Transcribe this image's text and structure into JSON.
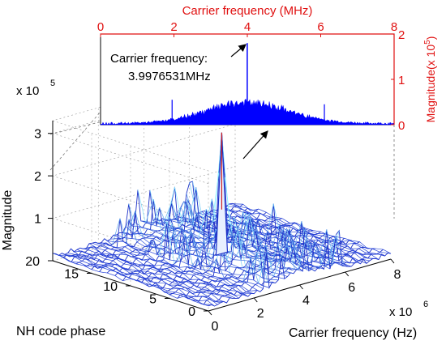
{
  "chart_data": [
    {
      "type": "surface",
      "xlabel": "Carrier frequency (Hz)",
      "ylabel": "NH code phase",
      "zlabel": "Magnitude",
      "x_ticks": [
        "0",
        "2",
        "4",
        "6",
        "8"
      ],
      "x_exponent": "x 10",
      "x_exponent_power": "6",
      "y_ticks": [
        "0",
        "5",
        "10",
        "15",
        "20"
      ],
      "z_ticks": [
        "1",
        "2",
        "3"
      ],
      "z_exponent": "x 10",
      "z_exponent_power": "5",
      "xlim": [
        0,
        8000000
      ],
      "ylim": [
        0,
        20
      ],
      "zlim": [
        0,
        330000
      ],
      "peak": {
        "x": 3997653.1,
        "y": 10,
        "z": 300000
      },
      "color": "#1e32c8"
    },
    {
      "type": "area",
      "title": "Carrier frequency (MHz)",
      "ylabel": "Magnitude(x 10",
      "ylabel_power": "5",
      "ylabel_close": ")",
      "x_ticks": [
        "0",
        "2",
        "4",
        "6",
        "8"
      ],
      "y_ticks": [
        "0",
        "1",
        "2"
      ],
      "xlim": [
        0,
        8
      ],
      "ylim": [
        0,
        2
      ],
      "peak": {
        "x": 3.9976531,
        "y": 1.8
      },
      "spikes": [
        {
          "x": 1.95,
          "y": 0.55
        },
        {
          "x": 6.1,
          "y": 0.45
        }
      ],
      "annotation": {
        "line1": "Carrier frequency:",
        "line2": "3.9976531MHz"
      },
      "color": "#0000ff",
      "axis_color": "#e01010"
    }
  ]
}
